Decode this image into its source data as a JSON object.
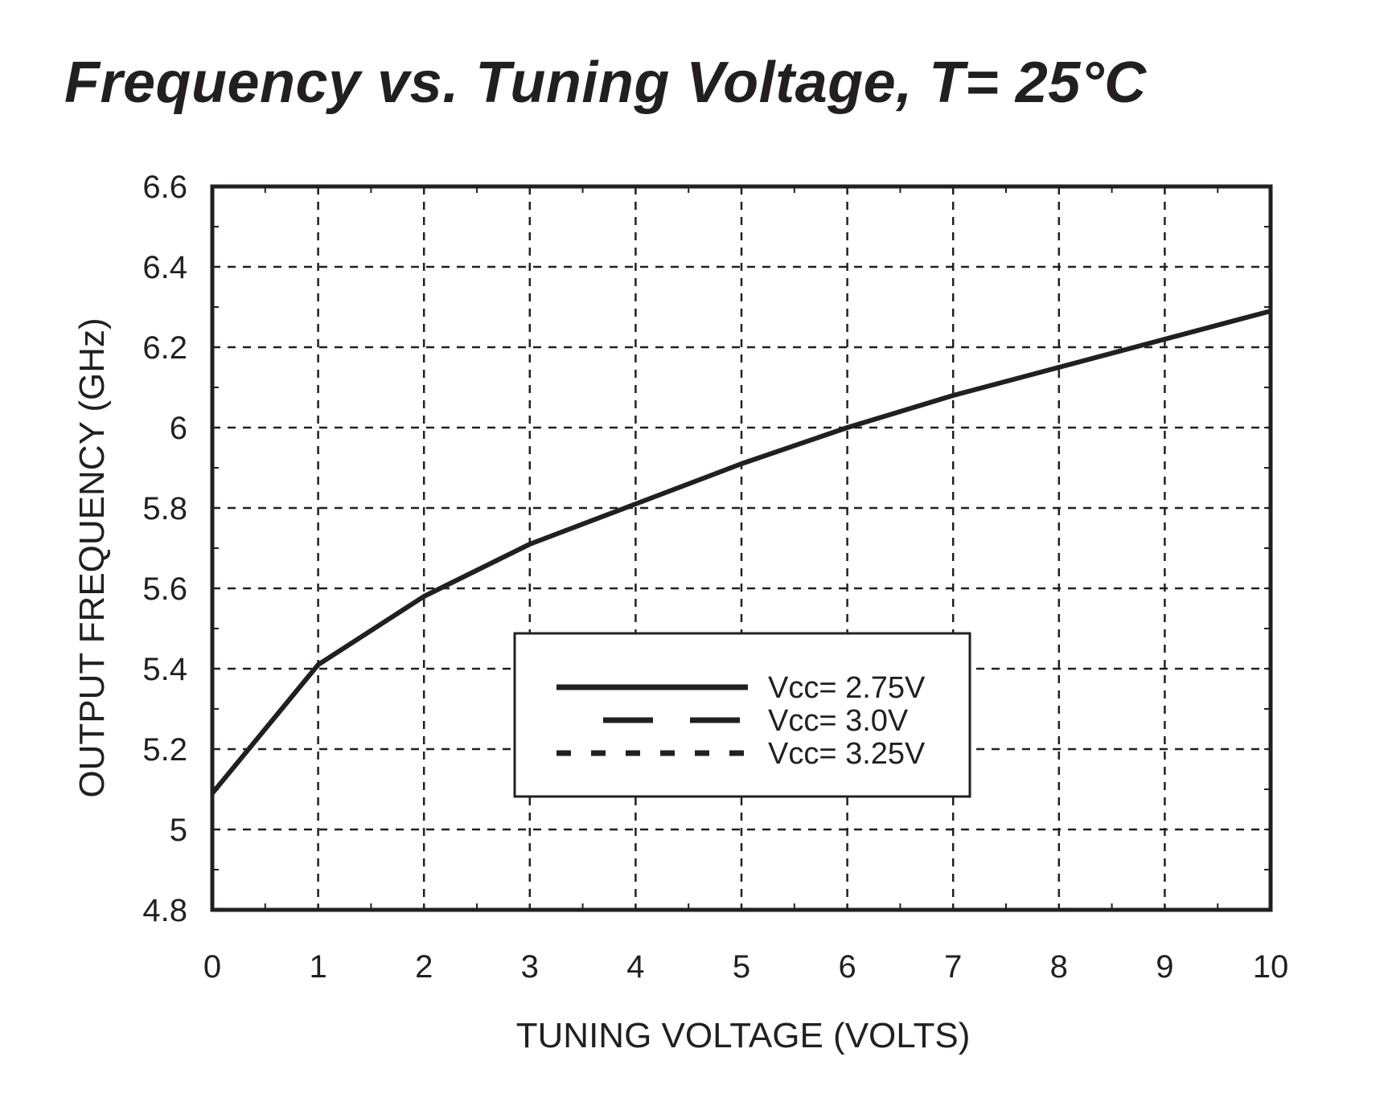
{
  "chart_data": {
    "type": "line",
    "title": "Frequency vs. Tuning Voltage, T= 25°C",
    "xlabel": "TUNING VOLTAGE (VOLTS)",
    "ylabel": "OUTPUT FREQUENCY (GHz)",
    "xlim": [
      0,
      10
    ],
    "ylim": [
      4.8,
      6.6
    ],
    "x_ticks": [
      "0",
      "1",
      "2",
      "3",
      "4",
      "5",
      "6",
      "7",
      "8",
      "9",
      "10"
    ],
    "y_ticks": [
      "4.8",
      "5",
      "5.2",
      "5.4",
      "5.6",
      "5.8",
      "6",
      "6.2",
      "6.4",
      "6.6"
    ],
    "grid": true,
    "legend_position": "center-bottom",
    "x": [
      0,
      1,
      2,
      3,
      4,
      5,
      6,
      7,
      8,
      9,
      10
    ],
    "series": [
      {
        "name": "Vcc= 2.75V",
        "style": "solid",
        "values": [
          5.09,
          5.41,
          5.58,
          5.71,
          5.81,
          5.91,
          6.0,
          6.08,
          6.15,
          6.22,
          6.29
        ]
      },
      {
        "name": "Vcc= 3.0V",
        "style": "dashed",
        "values": [
          5.09,
          5.41,
          5.58,
          5.71,
          5.81,
          5.91,
          6.0,
          6.08,
          6.15,
          6.22,
          6.29
        ]
      },
      {
        "name": "Vcc= 3.25V",
        "style": "dotted",
        "values": [
          5.09,
          5.41,
          5.58,
          5.71,
          5.81,
          5.91,
          6.0,
          6.08,
          6.15,
          6.22,
          6.29
        ]
      }
    ],
    "colors": {
      "ink": "#231f20"
    }
  }
}
